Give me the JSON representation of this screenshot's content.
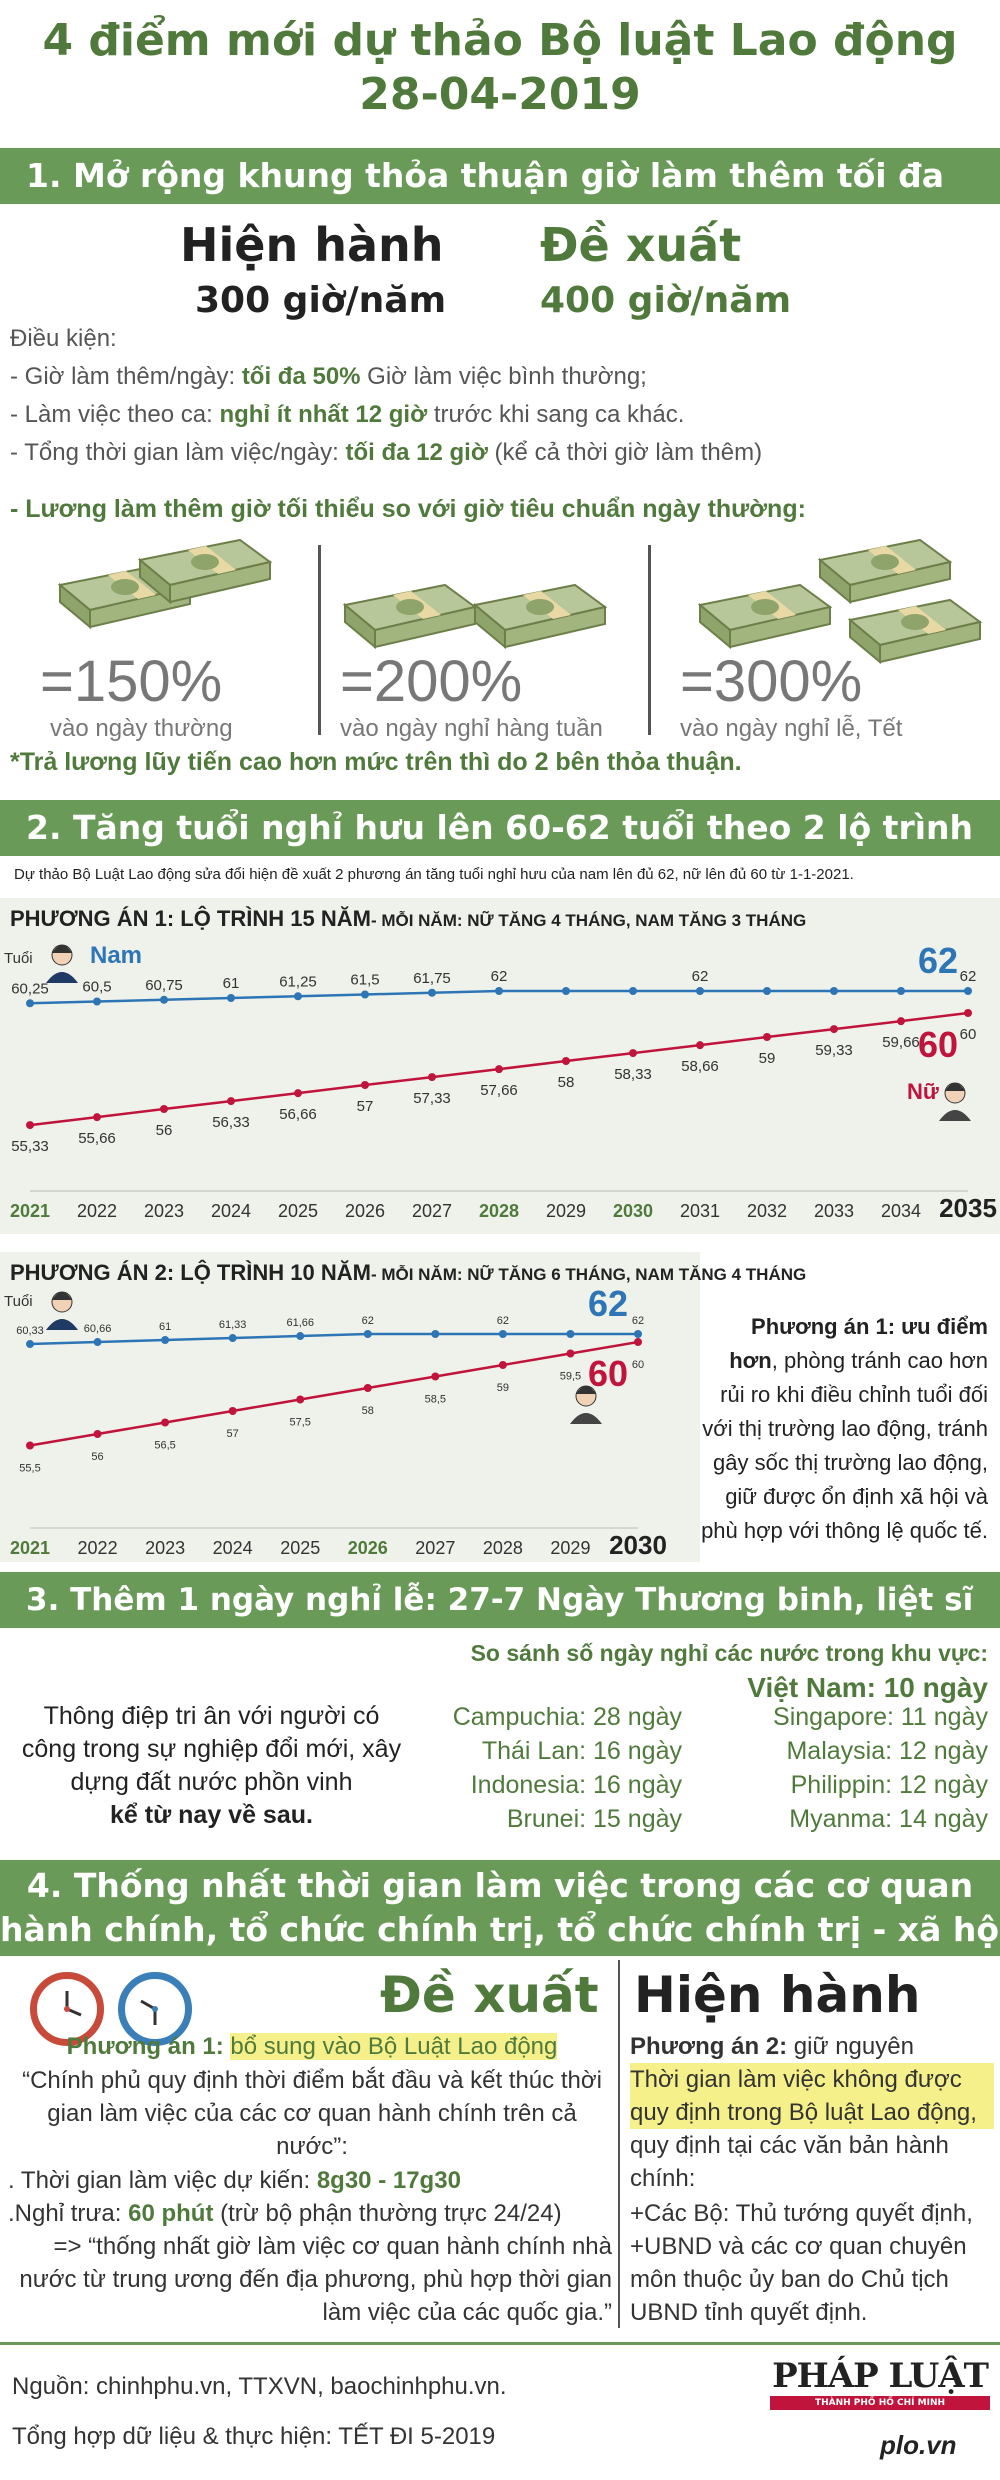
{
  "header": {
    "title_line1": "4 điểm mới dự thảo Bộ luật Lao động",
    "title_line2": "28-04-2019"
  },
  "s1": {
    "band": "1. Mở rộng khung thỏa thuận giờ làm thêm tối đa",
    "current_label": "Hiện hành",
    "current_value": "300 giờ/năm",
    "proposed_label": "Đề xuất",
    "proposed_value": "400 giờ/năm",
    "conditions_title": "Điều kiện:",
    "c1_pre": "- Giờ làm thêm/ngày: ",
    "c1_bold": "tối đa 50%",
    "c1_post": " Giờ làm việc bình thường;",
    "c2_pre": "- Làm việc theo ca: ",
    "c2_bold": "nghỉ ít nhất 12 giờ",
    "c2_post": " trước khi sang ca khác.",
    "c3_pre": "- Tổng thời gian làm việc/ngày:  ",
    "c3_bold": "tối đa 12 giờ",
    "c3_post": " (kể cả thời giờ làm thêm)",
    "c4": "- Lương làm thêm giờ tối thiểu so với giờ tiêu chuẩn ngày thường:",
    "rates": [
      {
        "pct": "=150%",
        "label": "vào ngày thường"
      },
      {
        "pct": "=200%",
        "label": "vào ngày nghỉ hàng tuần"
      },
      {
        "pct": "=300%",
        "label": "vào ngày nghỉ lễ, Tết"
      }
    ],
    "note": "*Trả lương lũy tiến cao hơn mức trên thì do 2 bên thỏa thuận."
  },
  "s2": {
    "band": "2. Tăng tuổi nghỉ hưu lên 60-62 tuổi theo 2 lộ trình",
    "intro": "Dự thảo Bộ Luật Lao động sửa đổi hiện đề xuất 2 phương án tăng tuổi nghỉ hưu của nam lên đủ 62, nữ lên đủ 60 từ 1-1-2021.",
    "plan1_title": "PHƯƠNG ÁN 1: LỘ TRÌNH 15 NĂM",
    "plan1_sub": "- MỖI NĂM: NỮ TĂNG 4 THÁNG, NAM TĂNG 3 THÁNG",
    "plan2_title": "PHƯƠNG ÁN 2: LỘ TRÌNH 10 NĂM",
    "plan2_sub": "- MỖI NĂM: NỮ TĂNG 6 THÁNG, NAM TĂNG 4 THÁNG",
    "age_label": "Tuổi",
    "male_label": "Nam",
    "female_label": "Nữ",
    "final_male": "62",
    "final_female": "60",
    "advantage_bold": "Phương án 1: ưu điểm hơn",
    "advantage_text": ", phòng tránh cao hơn rủi ro khi điều chỉnh tuổi đối với thị trường lao động, tránh gây sốc thị trường lao động, giữ được ổn định xã hội và phù hợp với thông lệ quốc tế."
  },
  "chart_data": [
    {
      "type": "line",
      "title": "PHƯƠNG ÁN 1: LỘ TRÌNH 15 NĂM",
      "categories": [
        "2021",
        "2022",
        "2023",
        "2024",
        "2025",
        "2026",
        "2027",
        "2028",
        "2029",
        "2030",
        "2031",
        "2032",
        "2033",
        "2034",
        "2035"
      ],
      "highlight_categories": [
        "2021",
        "2028",
        "2030",
        "2035"
      ],
      "series": [
        {
          "name": "Nam",
          "color": "#2e75b6",
          "values": [
            60.25,
            60.5,
            60.75,
            61,
            61.25,
            61.5,
            61.75,
            62,
            62,
            62,
            62,
            62,
            62,
            62,
            62
          ],
          "labels": [
            "60,25",
            "60,5",
            "60,75",
            "61",
            "61,25",
            "61,5",
            "61,75",
            "62",
            "",
            "",
            "62",
            "",
            "",
            "",
            "62"
          ]
        },
        {
          "name": "Nữ",
          "color": "#c0143c",
          "values": [
            55.33,
            55.66,
            56,
            56.33,
            56.66,
            57,
            57.33,
            57.66,
            58,
            58.33,
            58.66,
            59,
            59.33,
            59.66,
            60
          ],
          "labels": [
            "55,33",
            "55,66",
            "56",
            "56,33",
            "56,66",
            "57",
            "57,33",
            "57,66",
            "58",
            "58,33",
            "58,66",
            "59",
            "59,33",
            "59,66",
            "60"
          ]
        }
      ],
      "ylabel": "Tuổi",
      "ylim": [
        55,
        62
      ]
    },
    {
      "type": "line",
      "title": "PHƯƠNG ÁN 2: LỘ TRÌNH 10 NĂM",
      "categories": [
        "2021",
        "2022",
        "2023",
        "2024",
        "2025",
        "2026",
        "2027",
        "2028",
        "2029",
        "2030"
      ],
      "highlight_categories": [
        "2021",
        "2026",
        "2030"
      ],
      "series": [
        {
          "name": "Nam",
          "color": "#2e75b6",
          "values": [
            60.33,
            60.66,
            61,
            61.33,
            61.66,
            62,
            62,
            62,
            62,
            62
          ],
          "labels": [
            "60,33",
            "60,66",
            "61",
            "61,33",
            "61,66",
            "62",
            "",
            "62",
            "",
            "62"
          ]
        },
        {
          "name": "Nữ",
          "color": "#c0143c",
          "values": [
            55.5,
            56,
            56.5,
            57,
            57.5,
            58,
            58.5,
            59,
            59.5,
            60
          ],
          "labels": [
            "55,5",
            "56",
            "56,5",
            "57",
            "57,5",
            "58",
            "58,5",
            "59",
            "59,5",
            "60"
          ]
        }
      ],
      "ylabel": "Tuổi",
      "ylim": [
        55,
        62
      ]
    }
  ],
  "s3": {
    "band": "3. Thêm 1 ngày nghỉ lễ: 27-7 Ngày Thương binh, liệt sĩ",
    "compare_title": "So sánh số ngày nghỉ các nước trong khu vực:",
    "vietnam": "Việt Nam: 10 ngày",
    "message": "Thông điệp tri ân với người có công trong sự nghiệp đổi mới, xây dựng đất nước phồn vinh",
    "message_bold": "kể từ nay về sau.",
    "left_countries": [
      "Campuchia: 28 ngày",
      "Thái Lan: 16 ngày",
      "Indonesia: 16 ngày",
      "Brunei: 15 ngày"
    ],
    "right_countries": [
      "Singapore: 11 ngày",
      "Malaysia: 12 ngày",
      "Philippin: 12 ngày",
      "Myanma: 14 ngày"
    ]
  },
  "s4": {
    "band_line1": "4. Thống nhất thời gian làm việc trong các cơ quan",
    "band_line2": "hành chính, tổ chức chính trị, tổ chức chính trị - xã hội",
    "proposed_label": "Đề xuất",
    "current_label": "Hiện hành",
    "p1_label": "Phương án 1:",
    "p1_hl": "bổ sung vào Bộ Luật Lao động",
    "p1_quote": "“Chính phủ quy định thời điểm bắt đầu và kết thúc thời gian làm việc của các cơ quan hành chính trên cả nước”:",
    "p1_time_pre": ". Thời gian làm việc dự kiến: ",
    "p1_time_bold": "8g30 - 17g30",
    "p1_noon_pre": ".Nghỉ trưa: ",
    "p1_noon_bold": "60 phút",
    "p1_noon_post": " (trừ bộ phận thường trực 24/24)",
    "p1_result": "=> “thống nhất giờ làm việc cơ quan hành chính nhà nước từ trung ương đến địa phương, phù hợp thời gian làm việc của các quốc gia.”",
    "p2_label": "Phương án 2:",
    "p2_keep": " giữ nguyên",
    "p2_hl": "Thời gian làm việc không được quy định trong Bộ luật Lao động,",
    "p2_text": "quy định tại các văn bản hành chính:",
    "p2_b1": "+Các Bộ: Thủ tướng quyết định,",
    "p2_b2": "+UBND và các cơ quan chuyên môn thuộc ủy ban do Chủ tịch UBND tỉnh quyết định."
  },
  "footer": {
    "source": "Nguồn: chinhphu.vn, TTXVN, baochinhphu.vn.",
    "credit": "Tổng hợp dữ liệu & thực hiện: TẾT ĐI  5-2019",
    "logo": "PHÁP LUẬT",
    "logo_sub": "THÀNH PHỐ HỒ CHÍ MINH",
    "site": "plo.vn"
  },
  "colors": {
    "green": "#6a9a57",
    "blue": "#2e75b6",
    "red": "#c0143c",
    "chart_bg": "#eef2ea"
  }
}
